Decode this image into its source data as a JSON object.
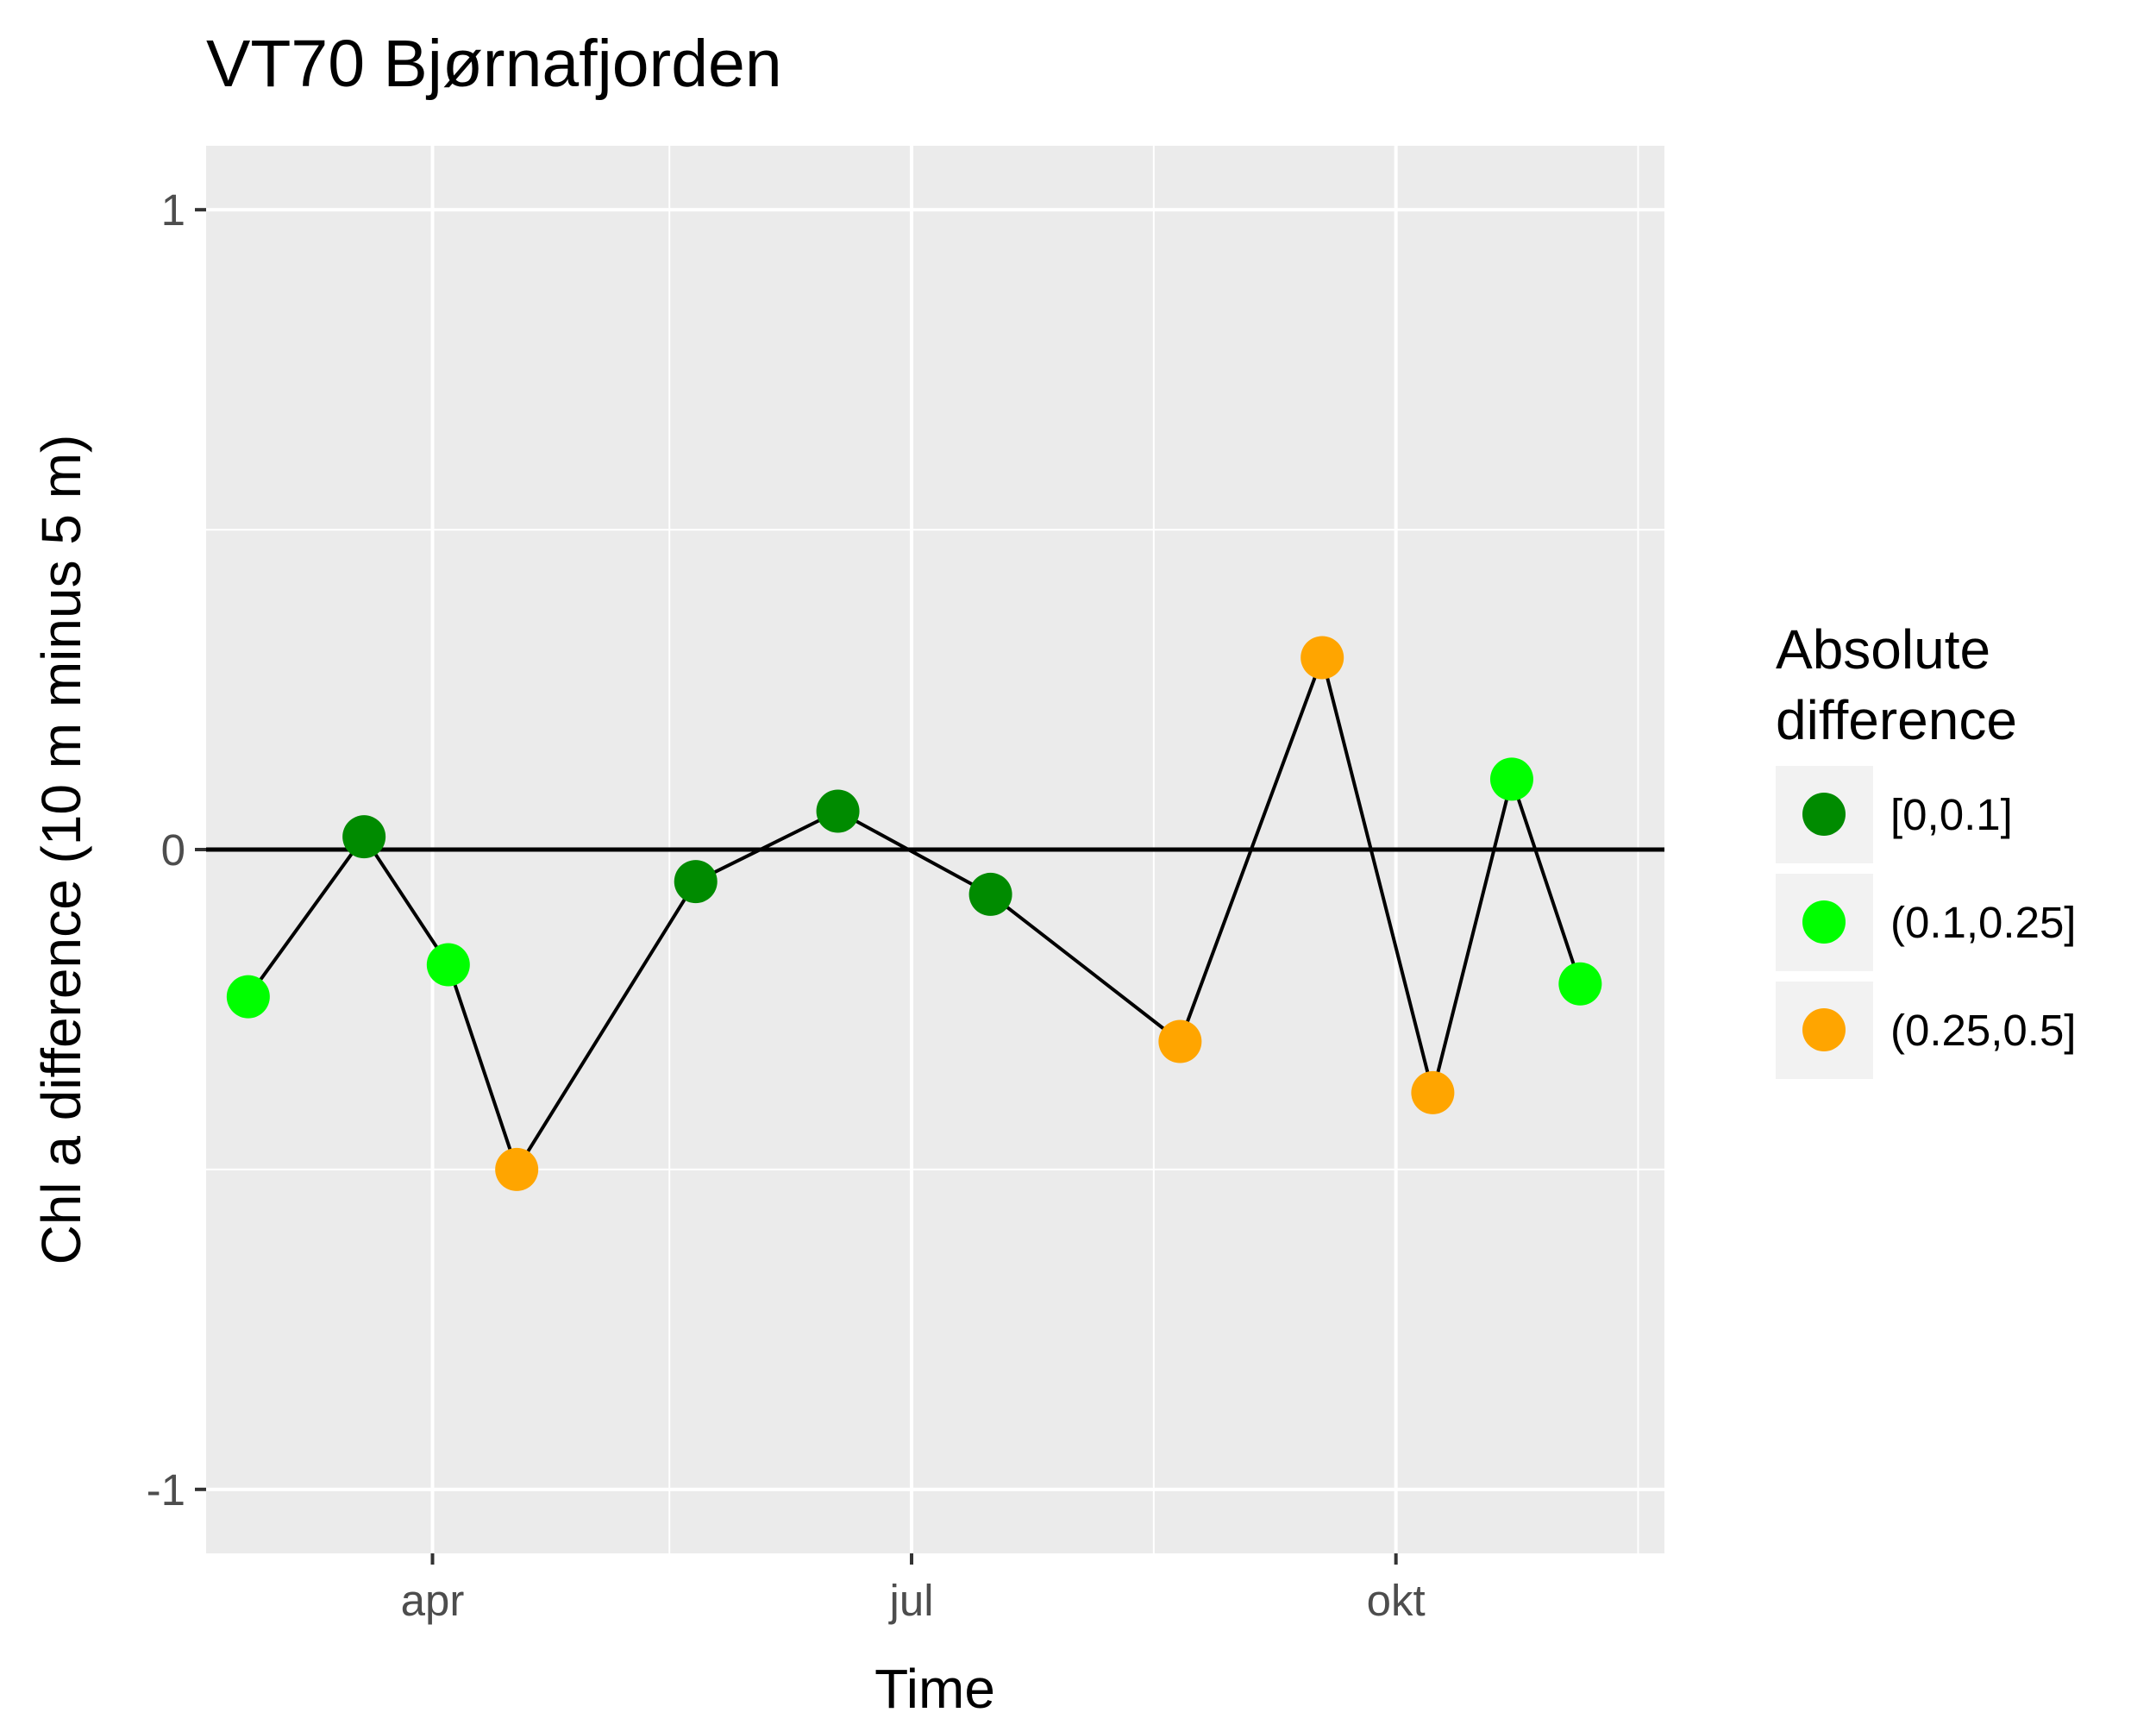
{
  "chart_data": {
    "type": "scatter",
    "title": "VT70 Bjørnafjorden",
    "xlabel": "Time",
    "ylabel": "Chl a difference (10 m minus 5 m)",
    "ylim": [
      -1.1,
      1.1
    ],
    "yticks": [
      -1,
      0,
      1
    ],
    "xlim": [
      "2020-02-18",
      "2020-11-21"
    ],
    "xticks": [
      {
        "date": "2020-04-01",
        "label": "apr"
      },
      {
        "date": "2020-07-01",
        "label": "jul"
      },
      {
        "date": "2020-10-01",
        "label": "okt"
      }
    ],
    "x_minor_gridlines": [
      "2020-02-15",
      "2020-05-16",
      "2020-08-16",
      "2020-11-16"
    ],
    "y_minor_gridlines": [
      -0.5,
      0.5
    ],
    "reference_line_y": 0,
    "connect_points": true,
    "grid": true,
    "legend": {
      "position": "right",
      "title_lines": [
        "Absolute",
        "difference"
      ],
      "entries": [
        {
          "label": "[0,0.1]",
          "color": "#008B00"
        },
        {
          "label": "(0.1,0.25]",
          "color": "#00FF00"
        },
        {
          "label": "(0.25,0.5]",
          "color": "#FFA500"
        }
      ]
    },
    "points": [
      {
        "date": "2020-02-26",
        "y": -0.23,
        "class": "(0.1,0.25]"
      },
      {
        "date": "2020-03-19",
        "y": 0.02,
        "class": "[0,0.1]"
      },
      {
        "date": "2020-04-04",
        "y": -0.18,
        "class": "(0.1,0.25]"
      },
      {
        "date": "2020-04-17",
        "y": -0.5,
        "class": "(0.25,0.5]"
      },
      {
        "date": "2020-05-21",
        "y": -0.05,
        "class": "[0,0.1]"
      },
      {
        "date": "2020-06-17",
        "y": 0.06,
        "class": "[0,0.1]"
      },
      {
        "date": "2020-07-16",
        "y": -0.07,
        "class": "[0,0.1]"
      },
      {
        "date": "2020-08-21",
        "y": -0.3,
        "class": "(0.25,0.5]"
      },
      {
        "date": "2020-09-17",
        "y": 0.3,
        "class": "(0.25,0.5]"
      },
      {
        "date": "2020-10-08",
        "y": -0.38,
        "class": "(0.25,0.5]"
      },
      {
        "date": "2020-10-23",
        "y": 0.11,
        "class": "(0.1,0.25]"
      },
      {
        "date": "2020-11-05",
        "y": -0.21,
        "class": "(0.1,0.25]"
      }
    ]
  }
}
